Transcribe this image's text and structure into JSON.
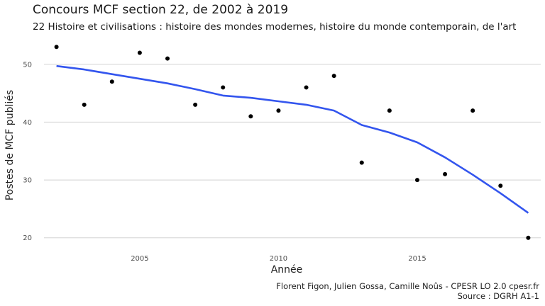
{
  "chart_data": {
    "type": "scatter",
    "title": "Concours MCF section 22, de 2002 à 2019",
    "subtitle": "22 Histoire et civilisations : histoire des mondes modernes, histoire du monde contemporain, de l'art",
    "xlabel": "Année",
    "ylabel": "Postes de MCF publiés",
    "caption": [
      "Florent Figon, Julien Gossa, Camille Noûs - CPESR LO 2.0 cpesr.fr",
      "Source : DGRH A1-1"
    ],
    "x": [
      2002,
      2003,
      2004,
      2005,
      2006,
      2007,
      2008,
      2009,
      2010,
      2011,
      2012,
      2013,
      2014,
      2015,
      2016,
      2017,
      2018,
      2019
    ],
    "y": [
      53,
      43,
      47,
      52,
      51,
      43,
      46,
      41,
      42,
      46,
      48,
      33,
      42,
      30,
      31,
      42,
      29,
      20
    ],
    "smooth": {
      "color": "#3355ee",
      "x": [
        2002,
        2003,
        2004,
        2005,
        2006,
        2007,
        2008,
        2009,
        2010,
        2011,
        2012,
        2013,
        2014,
        2015,
        2016,
        2017,
        2018,
        2019
      ],
      "y": [
        49.7,
        49.1,
        48.3,
        47.5,
        46.7,
        45.7,
        44.6,
        44.2,
        43.6,
        43.0,
        42.0,
        39.5,
        38.2,
        36.5,
        33.9,
        30.9,
        27.7,
        24.3
      ]
    },
    "xticks": [
      2005,
      2010,
      2015
    ],
    "yticks": [
      20,
      30,
      40,
      50
    ],
    "xlim": [
      2001.55,
      2019.45
    ],
    "ylim": [
      18.25,
      54.75
    ],
    "grid": true,
    "point_color": "#000000"
  }
}
